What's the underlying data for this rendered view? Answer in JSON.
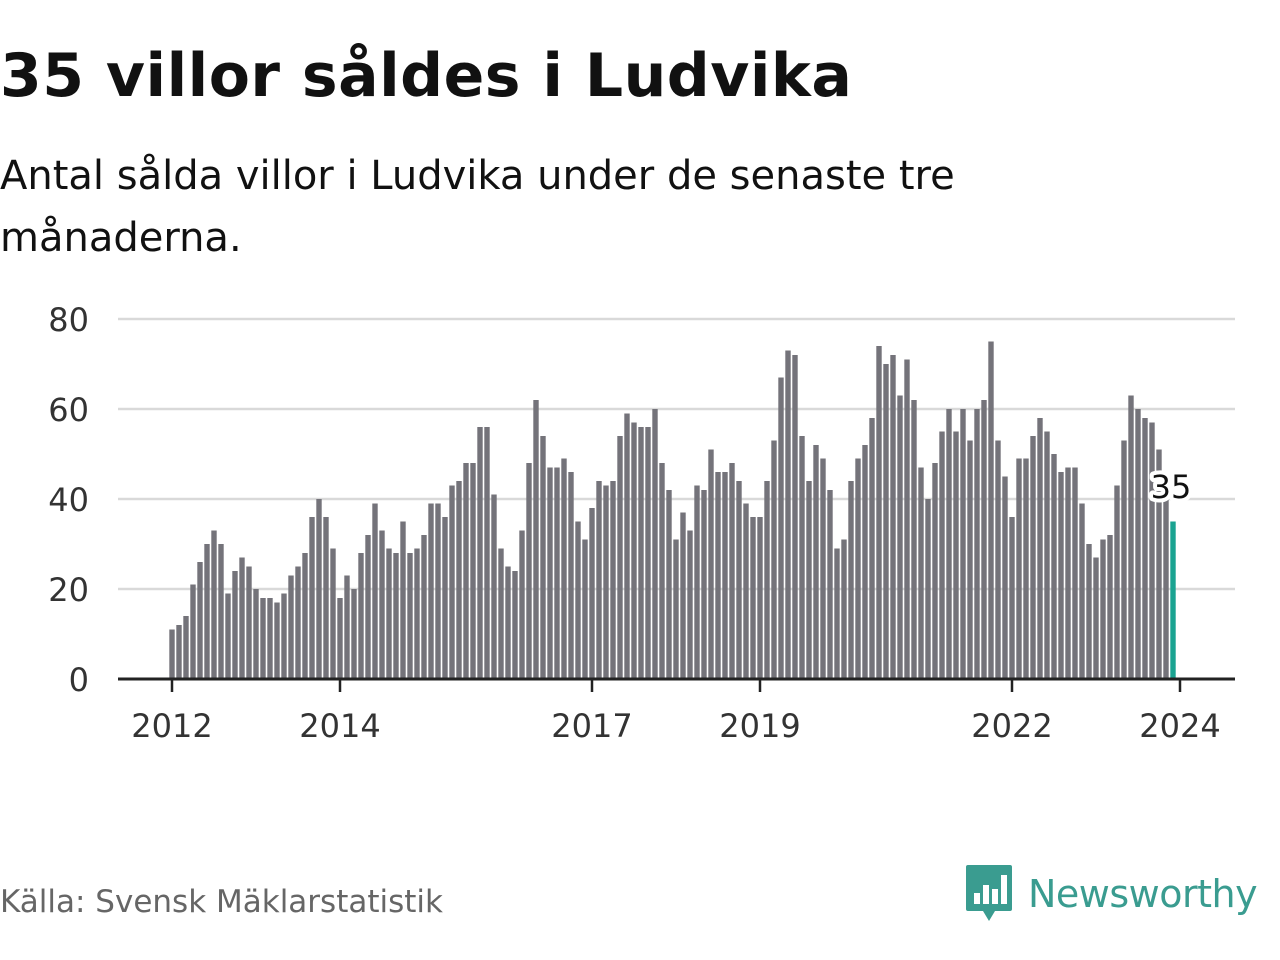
{
  "title": "35 villor såldes i Ludvika",
  "subtitle": "Antal sålda villor i Ludvika under de senaste tre månaderna.",
  "source": "Källa: Svensk Mäklarstatistik",
  "brand": {
    "name": "Newsworthy",
    "color": "#3a9c90",
    "icon": "newsworthy-bar-logo-icon"
  },
  "chart_data": {
    "type": "bar",
    "title": "35 villor såldes i Ludvika",
    "subtitle": "Antal sålda villor i Ludvika under de senaste tre månaderna.",
    "xlabel": "",
    "ylabel": "",
    "ylim": [
      0,
      80
    ],
    "yticks": [
      0,
      20,
      40,
      60,
      80
    ],
    "xticks": [
      "2012",
      "2014",
      "2017",
      "2019",
      "2022",
      "2024"
    ],
    "grid": true,
    "start": "2012-01",
    "end": "2024-01",
    "bar_color": "#74737a",
    "highlight_color": "#1aa391",
    "highlight_label": "35",
    "values": [
      11,
      12,
      14,
      21,
      26,
      30,
      33,
      30,
      19,
      24,
      27,
      25,
      20,
      18,
      18,
      17,
      19,
      23,
      25,
      28,
      36,
      40,
      36,
      29,
      18,
      23,
      20,
      28,
      32,
      39,
      33,
      29,
      28,
      35,
      28,
      29,
      32,
      39,
      39,
      36,
      43,
      44,
      48,
      48,
      56,
      56,
      41,
      29,
      25,
      24,
      33,
      48,
      62,
      54,
      47,
      47,
      49,
      46,
      35,
      31,
      38,
      44,
      43,
      44,
      54,
      59,
      57,
      56,
      56,
      60,
      48,
      42,
      31,
      37,
      33,
      43,
      42,
      51,
      46,
      46,
      48,
      44,
      39,
      36,
      36,
      44,
      53,
      67,
      73,
      72,
      54,
      44,
      52,
      49,
      42,
      29,
      31,
      44,
      49,
      52,
      58,
      74,
      70,
      72,
      63,
      71,
      62,
      47,
      40,
      48,
      55,
      60,
      55,
      60,
      53,
      60,
      62,
      75,
      53,
      45,
      36,
      49,
      49,
      54,
      58,
      55,
      50,
      46,
      47,
      47,
      39,
      30,
      27,
      31,
      32,
      43,
      53,
      63,
      60,
      58,
      57,
      51,
      40,
      35
    ]
  }
}
